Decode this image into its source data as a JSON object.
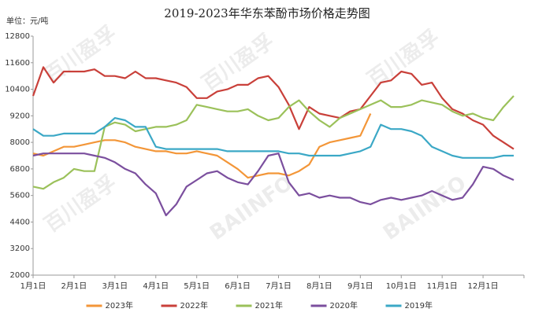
{
  "chart_data": {
    "type": "line",
    "title": "2019-2023年华东苯酚市场价格走势图",
    "y_unit": "单位：元/吨",
    "watermark": [
      "百川盈孚",
      "BAIINFO"
    ],
    "categories": [
      "1月1日",
      null,
      null,
      null,
      "2月1日",
      null,
      null,
      null,
      "3月1日",
      null,
      null,
      null,
      "4月1日",
      null,
      null,
      null,
      "5月1日",
      null,
      null,
      null,
      "6月1日",
      null,
      null,
      null,
      "7月1日",
      null,
      null,
      null,
      "8月1日",
      null,
      null,
      null,
      "9月1日",
      null,
      null,
      null,
      "10月1日",
      null,
      null,
      null,
      "11月1日",
      null,
      null,
      null,
      "12月1日",
      null,
      null,
      null
    ],
    "series": [
      {
        "name": "2023年",
        "color": "#f39638",
        "values": [
          7500,
          7400,
          7600,
          7800,
          7800,
          7900,
          8000,
          8100,
          8100,
          8000,
          7800,
          7700,
          7600,
          7600,
          7500,
          7500,
          7600,
          7500,
          7400,
          7100,
          6800,
          6400,
          6500,
          6600,
          6600,
          6500,
          6700,
          7000,
          7800,
          8000,
          8100,
          8200,
          8300,
          9300,
          null,
          null,
          null,
          null,
          null,
          null,
          null,
          null,
          null,
          null,
          null,
          null,
          null,
          null
        ]
      },
      {
        "name": "2022年",
        "color": "#c9403a",
        "values": [
          10100,
          11400,
          10700,
          11200,
          11200,
          11200,
          11300,
          11000,
          11000,
          10900,
          11200,
          10900,
          10900,
          10800,
          10700,
          10500,
          10000,
          10000,
          10300,
          10400,
          10600,
          10600,
          10900,
          11000,
          10500,
          9700,
          8600,
          9600,
          9300,
          9200,
          9100,
          9400,
          9500,
          10100,
          10700,
          10800,
          11200,
          11100,
          10600,
          10700,
          10000,
          9500,
          9300,
          9000,
          8800,
          8300,
          8000,
          7700
        ]
      },
      {
        "name": "2021年",
        "color": "#9bc15a",
        "values": [
          6000,
          5900,
          6200,
          6400,
          6800,
          6700,
          6700,
          8700,
          8900,
          8800,
          8500,
          8600,
          8700,
          8700,
          8800,
          9000,
          9700,
          9600,
          9500,
          9400,
          9400,
          9500,
          9200,
          9000,
          9100,
          9600,
          9900,
          9400,
          9000,
          8700,
          9100,
          9300,
          9500,
          9700,
          9900,
          9600,
          9600,
          9700,
          9900,
          9800,
          9700,
          9400,
          9200,
          9300,
          9100,
          9000,
          9600,
          10100
        ]
      },
      {
        "name": "2020年",
        "color": "#7b4f9e",
        "values": [
          7400,
          7500,
          7500,
          7500,
          7500,
          7500,
          7400,
          7300,
          7100,
          6800,
          6600,
          6100,
          5700,
          4700,
          5200,
          6000,
          6300,
          6600,
          6700,
          6400,
          6200,
          6100,
          6700,
          7400,
          7500,
          6200,
          5600,
          5700,
          5500,
          5600,
          5500,
          5500,
          5300,
          5200,
          5400,
          5500,
          5400,
          5500,
          5600,
          5800,
          5600,
          5400,
          5500,
          6100,
          6900,
          6800,
          6500,
          6300
        ]
      },
      {
        "name": "2019年",
        "color": "#3ba8c6",
        "values": [
          8600,
          8300,
          8300,
          8400,
          8400,
          8400,
          8400,
          8700,
          9100,
          9000,
          8700,
          8700,
          7800,
          7700,
          7700,
          7700,
          7700,
          7700,
          7700,
          7600,
          7600,
          7600,
          7600,
          7600,
          7600,
          7500,
          7500,
          7400,
          7400,
          7400,
          7400,
          7500,
          7600,
          7800,
          8800,
          8600,
          8600,
          8500,
          8300,
          7800,
          7600,
          7400,
          7300,
          7300,
          7300,
          7300,
          7400,
          7400
        ]
      }
    ],
    "ylim": [
      2000,
      12800
    ],
    "yticks": [
      2000,
      3200,
      4400,
      5600,
      6800,
      8000,
      9200,
      10400,
      11600,
      12800
    ],
    "grid": false,
    "legend": "bottom"
  }
}
